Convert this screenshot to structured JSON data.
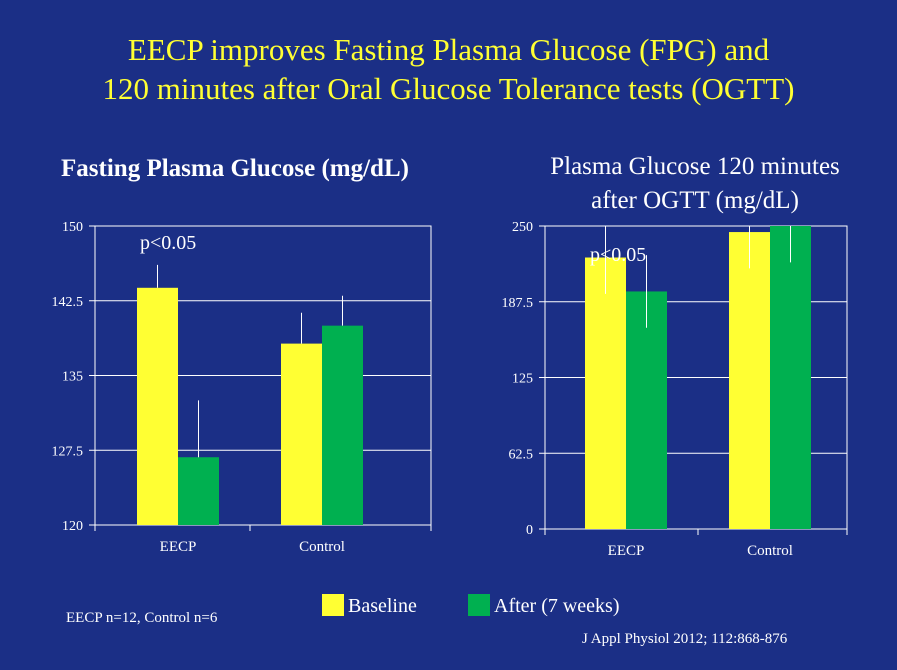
{
  "slide": {
    "title_line1": "EECP improves Fasting Plasma Glucose (FPG) and",
    "title_line2": "120 minutes after Oral Glucose Tolerance tests (OGTT)",
    "sample_sizes": "EECP n=12, Control n=6",
    "citation": "J Appl Physiol 2012; 112:868-876"
  },
  "legend": [
    {
      "label": "Baseline",
      "color": "#ffff33"
    },
    {
      "label": "After (7 weeks)",
      "color": "#00b050"
    }
  ],
  "colors": {
    "background": "#1b2f86",
    "title": "#ffff33",
    "baseline": "#ffff33",
    "after": "#00b050",
    "axis": "#ffffff"
  },
  "chart_data": [
    {
      "type": "bar",
      "title": "Fasting Plasma Glucose (mg/dL)",
      "title_lines": [
        "Fasting Plasma Glucose (mg/dL)"
      ],
      "categories": [
        "EECP",
        "Control"
      ],
      "series": [
        {
          "name": "Baseline",
          "values": [
            143.8,
            138.2
          ],
          "error": [
            2.3,
            3.1
          ]
        },
        {
          "name": "After (7 weeks)",
          "values": [
            126.8,
            140.0
          ],
          "error": [
            5.7,
            3.0
          ]
        }
      ],
      "ylim": [
        120,
        150
      ],
      "yticks": [
        "150",
        "142.5",
        "135",
        "127.5",
        "120"
      ],
      "annotation": "p<0.05",
      "grid": true
    },
    {
      "type": "bar",
      "title": "Plasma Glucose 120 minutes after OGTT (mg/dL)",
      "title_lines": [
        "Plasma Glucose 120 minutes",
        "after OGTT (mg/dL)"
      ],
      "categories": [
        "EECP",
        "Control"
      ],
      "series": [
        {
          "name": "Baseline",
          "values": [
            224,
            245
          ],
          "error": [
            30,
            30
          ]
        },
        {
          "name": "After (7 weeks)",
          "values": [
            196,
            250
          ],
          "error": [
            30,
            30
          ]
        }
      ],
      "ylim": [
        0,
        250
      ],
      "yticks": [
        "250",
        "187.5",
        "125",
        "62.5",
        "0"
      ],
      "annotation": "p<0.05",
      "grid": true
    }
  ]
}
